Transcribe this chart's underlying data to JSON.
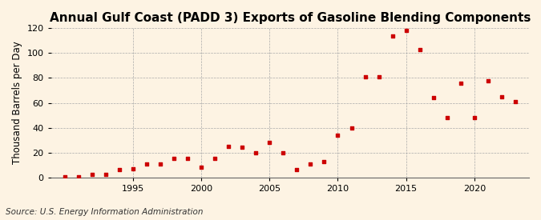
{
  "title": "Annual Gulf Coast (PADD 3) Exports of Gasoline Blending Components",
  "ylabel": "Thousand Barrels per Day",
  "source": "Source: U.S. Energy Information Administration",
  "background_color": "#fdf3e3",
  "marker_color": "#cc0000",
  "grid_color": "#aaaaaa",
  "years": [
    1990,
    1991,
    1992,
    1993,
    1994,
    1995,
    1996,
    1997,
    1998,
    1999,
    2000,
    2001,
    2002,
    2003,
    2004,
    2005,
    2006,
    2007,
    2008,
    2009,
    2010,
    2011,
    2012,
    2013,
    2014,
    2015,
    2016,
    2017,
    2018,
    2019,
    2020,
    2021,
    2022,
    2023
  ],
  "values": [
    0.5,
    0.5,
    2.5,
    2.5,
    6.0,
    7.0,
    11.0,
    11.0,
    15.0,
    15.0,
    8.0,
    15.0,
    25.0,
    24.0,
    20.0,
    28.0,
    20.0,
    6.0,
    11.0,
    13.0,
    34.0,
    40.0,
    81.0,
    81.0,
    114.0,
    118.0,
    103.0,
    64.0,
    48.0,
    76.0,
    48.0,
    78.0,
    65.0,
    61.0
  ],
  "xlim": [
    1989,
    2024
  ],
  "ylim": [
    0,
    120
  ],
  "yticks": [
    0,
    20,
    40,
    60,
    80,
    100,
    120
  ],
  "xticks": [
    1995,
    2000,
    2005,
    2010,
    2015,
    2020
  ],
  "title_fontsize": 11,
  "label_fontsize": 8.5,
  "tick_fontsize": 8,
  "source_fontsize": 7.5
}
